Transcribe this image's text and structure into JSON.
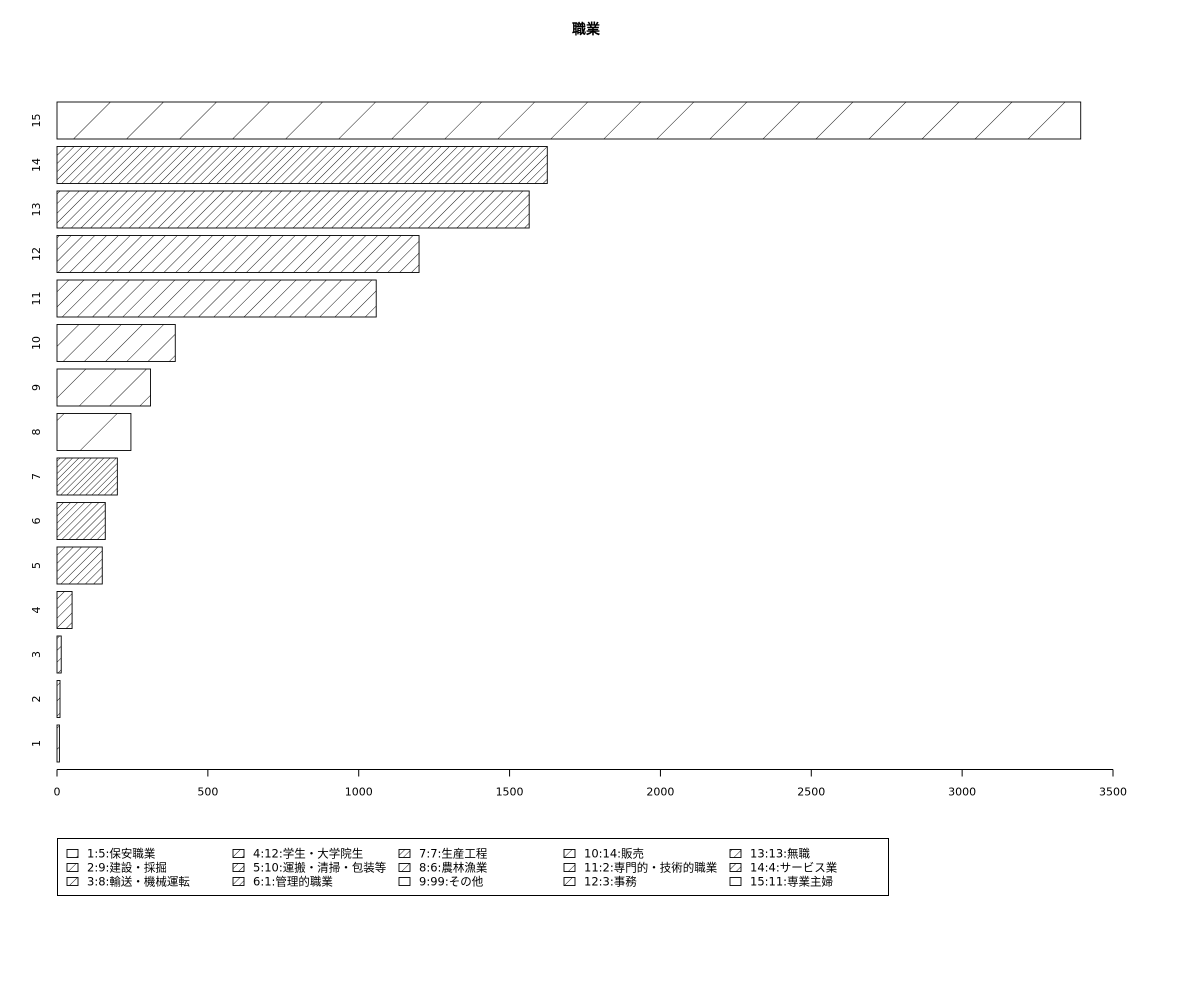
{
  "chart_data": {
    "type": "bar",
    "orientation": "horizontal",
    "title": "職業",
    "xlabel": "",
    "ylabel": "",
    "xlim": [
      0,
      3500
    ],
    "xticks": [
      0,
      500,
      1000,
      1500,
      2000,
      2500,
      3000,
      3500
    ],
    "grid": false,
    "legend_position": "bottom",
    "categories": [
      "1",
      "2",
      "3",
      "4",
      "5",
      "6",
      "7",
      "8",
      "9",
      "10",
      "11",
      "12",
      "13",
      "14",
      "15"
    ],
    "values": [
      8,
      10,
      14,
      50,
      150,
      160,
      200,
      245,
      310,
      392,
      1058,
      1200,
      1565,
      1625,
      3393
    ],
    "hatch_angles": [
      45,
      45,
      45,
      45,
      45,
      45,
      45,
      45,
      45,
      45,
      45,
      45,
      45,
      45,
      45
    ],
    "hatch_densities": [
      10,
      14,
      18,
      22,
      26,
      30,
      34,
      4,
      7,
      10,
      14,
      18,
      22,
      26,
      4
    ],
    "legend": [
      "1:5:保安職業",
      "2:9:建設・採掘",
      "3:8:輸送・機械運転",
      "4:12:学生・大学院生",
      "5:10:運搬・清掃・包装等",
      "6:1:管理的職業",
      "7:7:生産工程",
      "8:6:農林漁業",
      "9:99:その他",
      "10:14:販売",
      "11:2:専門的・技術的職業",
      "12:3:事務",
      "13:13:無職",
      "14:4:サービス業",
      "15:11:専業主婦"
    ]
  }
}
